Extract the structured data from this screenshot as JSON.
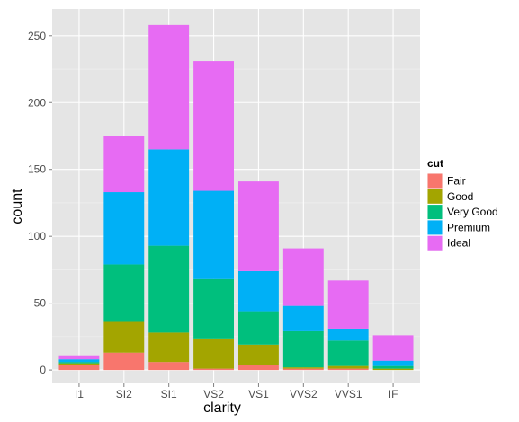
{
  "chart_data": {
    "type": "bar",
    "stacked": true,
    "categories": [
      "I1",
      "SI2",
      "SI1",
      "VS2",
      "VS1",
      "VVS2",
      "VVS1",
      "IF"
    ],
    "xlabel": "clarity",
    "ylabel": "count",
    "ylim": [
      -10,
      270
    ],
    "yticks": [
      0,
      50,
      100,
      150,
      200,
      250
    ],
    "grid": true,
    "legend": {
      "title": "cut",
      "position": "right"
    },
    "series": [
      {
        "name": "Fair",
        "color": "#F8766D",
        "values": [
          4,
          13,
          6,
          1,
          4,
          1,
          1,
          0
        ]
      },
      {
        "name": "Good",
        "color": "#A3A500",
        "values": [
          1,
          23,
          22,
          22,
          15,
          1,
          2,
          1
        ]
      },
      {
        "name": "Very Good",
        "color": "#00BF7D",
        "values": [
          1,
          43,
          65,
          45,
          25,
          27,
          19,
          2
        ]
      },
      {
        "name": "Premium",
        "color": "#00B0F6",
        "values": [
          2,
          54,
          72,
          66,
          30,
          19,
          9,
          4
        ]
      },
      {
        "name": "Ideal",
        "color": "#E76BF3",
        "values": [
          3,
          42,
          93,
          97,
          67,
          43,
          36,
          19
        ]
      }
    ]
  }
}
